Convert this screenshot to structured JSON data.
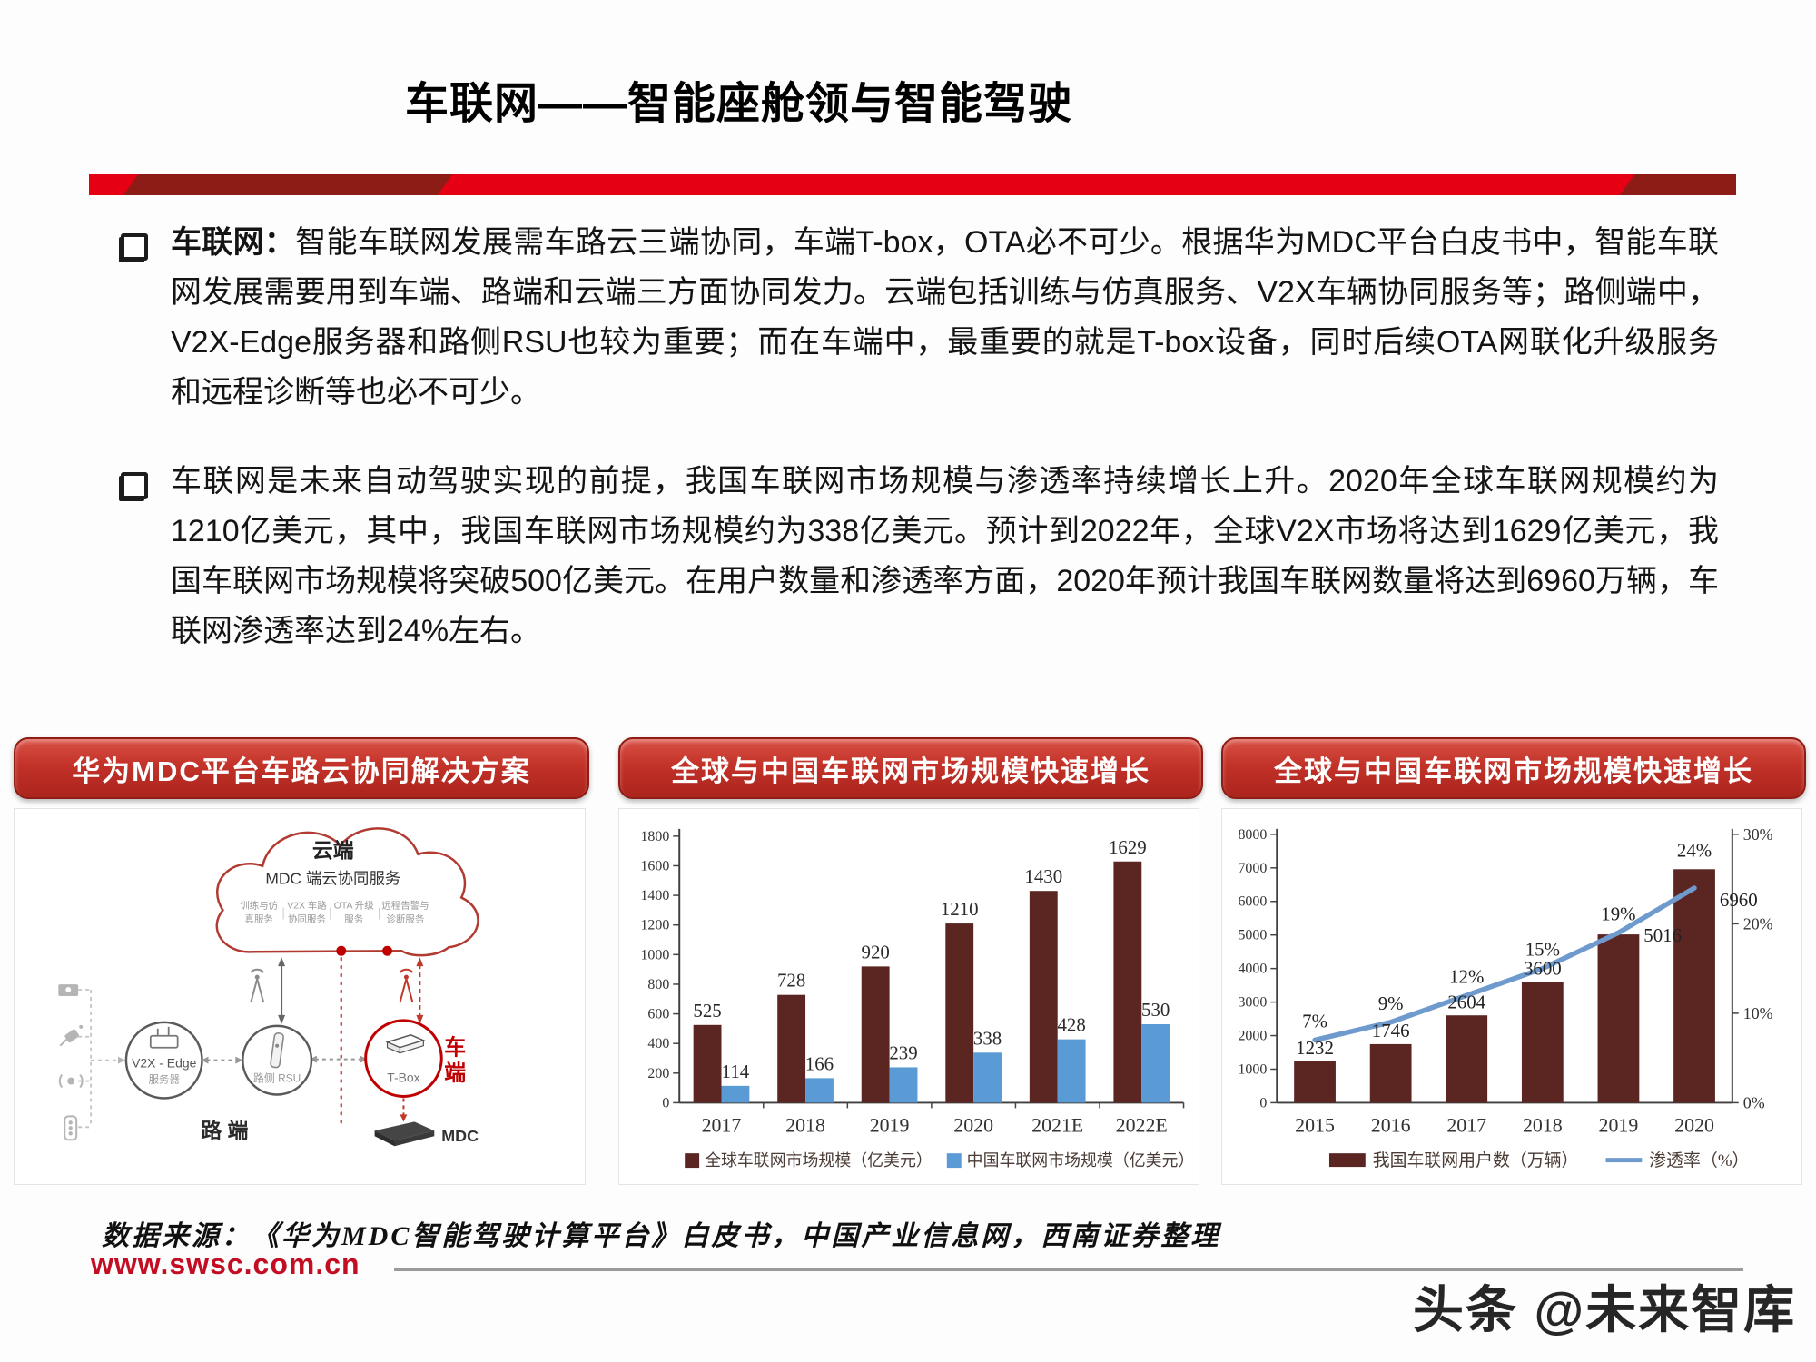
{
  "title": "车联网——智能座舱领与智能驾驶",
  "bullets": [
    {
      "lead": "车联网：",
      "text": "智能车联网发展需车路云三端协同，车端T-box，OTA必不可少。根据华为MDC平台白皮书中，智能车联网发展需要用到车端、路端和云端三方面协同发力。云端包括训练与仿真服务、V2X车辆协同服务等；路侧端中，V2X-Edge服务器和路侧RSU也较为重要；而在车端中，最重要的就是T-box设备，同时后续OTA网联化升级服务和远程诊断等也必不可少。"
    },
    {
      "lead": "",
      "text": "车联网是未来自动驾驶实现的前提，我国车联网市场规模与渗透率持续增长上升。2020年全球车联网规模约为1210亿美元，其中，我国车联网市场规模约为338亿美元。预计到2022年，全球V2X市场将达到1629亿美元，我国车联网市场规模将突破500亿美元。在用户数量和渗透率方面，2020年预计我国车联网数量将达到6960万辆，车联网渗透率达到24%左右。"
    }
  ],
  "panels": {
    "diagram": {
      "header": "华为MDC平台车路云协同解决方案",
      "cloud_title": "云端",
      "cloud_subtitle": "MDC 端云协同服务",
      "services": [
        {
          "l1": "训练与仿",
          "l2": "真服务"
        },
        {
          "l1": "V2X 车路",
          "l2": "协同服务"
        },
        {
          "l1": "OTA 升级",
          "l2": "服务"
        },
        {
          "l1": "远程告警与",
          "l2": "诊断服务"
        }
      ],
      "edge_label": "V2X - Edge",
      "edge_sub": "服务器",
      "rsu_label": "路侧 RSU",
      "tbox_label": "T-Box",
      "vehicle_side_1": "车",
      "vehicle_side_2": "端",
      "road_side": "路 端",
      "mdc_label": "MDC"
    },
    "chart1": {
      "header": "全球与中国车联网市场规模快速增长"
    },
    "chart2": {
      "header": "全球与中国车联网市场规模快速增长"
    }
  },
  "chart_data": [
    {
      "type": "bar",
      "title": "全球与中国车联网市场规模快速增长",
      "categories": [
        "2017",
        "2018",
        "2019",
        "2020",
        "2021E",
        "2022E"
      ],
      "series": [
        {
          "name": "全球车联网市场规模（亿美元）",
          "color": "#5b2522",
          "values": [
            525,
            728,
            920,
            1210,
            1430,
            1629
          ]
        },
        {
          "name": "中国车联网市场规模（亿美元）",
          "color": "#5b9bd5",
          "values": [
            114,
            166,
            239,
            338,
            428,
            530
          ]
        }
      ],
      "xlabel": "",
      "ylabel": "",
      "ylim": [
        0,
        1800
      ],
      "ystep": 200,
      "grid": false,
      "legend_position": "bottom"
    },
    {
      "type": "bar+line",
      "title": "全球与中国车联网市场规模快速增长",
      "categories": [
        "2015",
        "2016",
        "2017",
        "2018",
        "2019",
        "2020"
      ],
      "bar_series": {
        "name": "我国车联网用户数（万辆）",
        "color": "#5b2522",
        "values": [
          1232,
          1746,
          2604,
          3600,
          5016,
          6960
        ]
      },
      "line_series": {
        "name": "渗透率（%）",
        "color": "#6f9ace",
        "values": [
          7,
          9,
          12,
          15,
          19,
          24
        ],
        "labels": [
          "7%",
          "9%",
          "12%",
          "15%",
          "19%",
          "24%"
        ]
      },
      "ylim_left": [
        0,
        8000
      ],
      "ystep_left": 1000,
      "ylim_right": [
        0,
        30
      ],
      "yticks_right": [
        "0%",
        "10%",
        "20%",
        "30%"
      ],
      "grid": false,
      "legend_position": "bottom"
    }
  ],
  "footer": {
    "source": "数据来源：《华为MDC智能驾驶计算平台》白皮书，中国产业信息网，西南证券整理",
    "website": "www.swsc.com.cn",
    "watermark": "头条 @未来智库"
  }
}
